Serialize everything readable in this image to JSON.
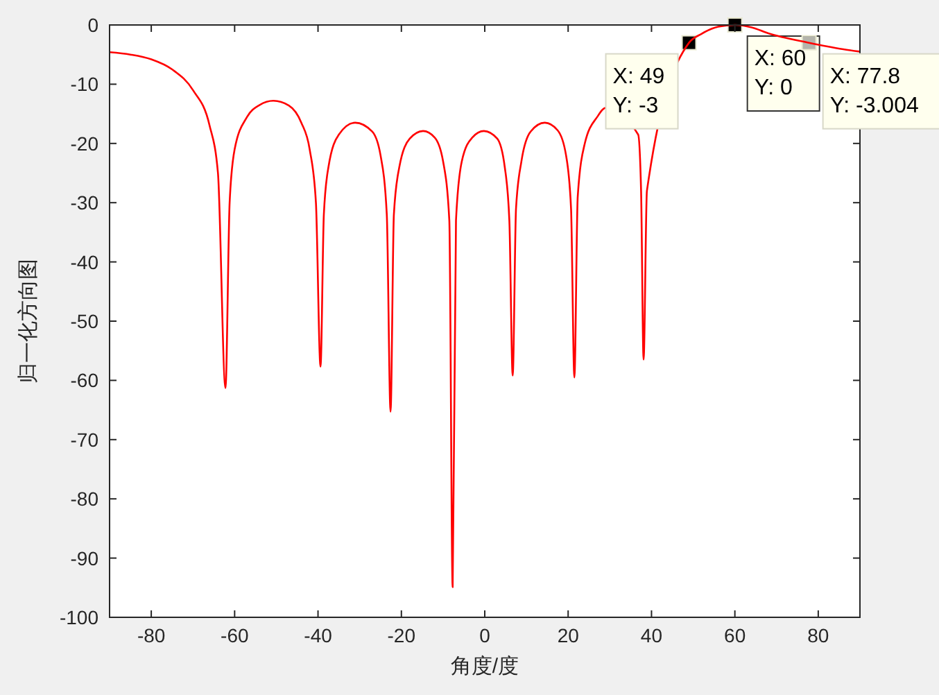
{
  "chart_data": {
    "type": "line",
    "xlabel": "角度/度",
    "ylabel": "归一化方向图",
    "xlim": [
      -90,
      90
    ],
    "ylim": [
      -100,
      0
    ],
    "xticks": [
      -80,
      -60,
      -40,
      -20,
      0,
      20,
      40,
      60,
      80
    ],
    "yticks": [
      -100,
      -90,
      -80,
      -70,
      -60,
      -50,
      -40,
      -30,
      -20,
      -10,
      0
    ],
    "grid": false,
    "marker": "none",
    "line_style": "solid",
    "series": [
      {
        "color": "#ff0000",
        "x": [
          -90,
          -85,
          -80,
          -75,
          -70,
          -66,
          -64,
          -62.2,
          -61.2,
          -60,
          -57,
          -54,
          -50.7,
          -47,
          -44,
          -42,
          -40.5,
          -39.4,
          -38.6,
          -37.5,
          -35,
          -31.1,
          -27,
          -25,
          -23.5,
          -22.6,
          -21.8,
          -20.5,
          -18,
          -14.8,
          -12,
          -10,
          -8.5,
          -7.7,
          -6.9,
          -5.5,
          -3,
          -0.2,
          3,
          4.8,
          5.9,
          6.7,
          7.5,
          8.8,
          11,
          14.4,
          17.5,
          19.5,
          20.7,
          21.5,
          22.3,
          24,
          27,
          29,
          36.8,
          37.5,
          38.1,
          38.9,
          49,
          52,
          56,
          60,
          64,
          68,
          77.8,
          82,
          86,
          90
        ],
        "values": [
          -4.6,
          -5.0,
          -5.8,
          -7.5,
          -11,
          -17,
          -25,
          -61.3,
          -30,
          -21,
          -15.5,
          -13.5,
          -12.8,
          -13.6,
          -16.5,
          -21,
          -30,
          -57.7,
          -32,
          -24,
          -18.5,
          -16.5,
          -18,
          -22,
          -32,
          -65.3,
          -32,
          -24,
          -19.2,
          -17.9,
          -19,
          -23,
          -33,
          -94.9,
          -33,
          -23,
          -19,
          -17.9,
          -19.2,
          -24,
          -33,
          -59.2,
          -31,
          -23,
          -18,
          -16.5,
          -17.8,
          -22,
          -31,
          -59.5,
          -29,
          -20,
          -15.5,
          -14,
          -18.5,
          -28,
          -56.5,
          -28,
          -3,
          -1.5,
          -0.3,
          0,
          -0.4,
          -1.4,
          -3.004,
          -3.6,
          -4.1,
          -4.5
        ]
      }
    ],
    "annotations": [
      {
        "text": "X: 49\nY: -3",
        "x": 49,
        "y": -3
      },
      {
        "text": "X: 60\nY: 0",
        "x": 60,
        "y": 0
      },
      {
        "text": "X: 77.8\nY: -3.004",
        "x": 77.8,
        "y": -3.004
      }
    ]
  }
}
